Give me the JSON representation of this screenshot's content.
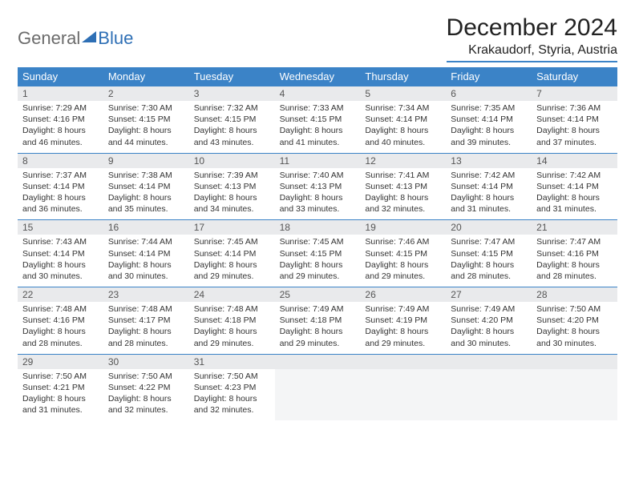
{
  "logo": {
    "text1": "General",
    "text2": "Blue"
  },
  "title": "December 2024",
  "location": "Krakaudorf, Styria, Austria",
  "colors": {
    "header_bg": "#3b83c7",
    "header_text": "#ffffff",
    "daynum_bg": "#e9eaec",
    "border": "#3b83c7",
    "logo_gray": "#6b6b6b",
    "logo_blue": "#2e6fb5"
  },
  "day_names": [
    "Sunday",
    "Monday",
    "Tuesday",
    "Wednesday",
    "Thursday",
    "Friday",
    "Saturday"
  ],
  "labels": {
    "sunrise": "Sunrise:",
    "sunset": "Sunset:",
    "daylight": "Daylight:"
  },
  "days": [
    {
      "n": "1",
      "sunrise": "7:29 AM",
      "sunset": "4:16 PM",
      "daylight": "8 hours and 46 minutes."
    },
    {
      "n": "2",
      "sunrise": "7:30 AM",
      "sunset": "4:15 PM",
      "daylight": "8 hours and 44 minutes."
    },
    {
      "n": "3",
      "sunrise": "7:32 AM",
      "sunset": "4:15 PM",
      "daylight": "8 hours and 43 minutes."
    },
    {
      "n": "4",
      "sunrise": "7:33 AM",
      "sunset": "4:15 PM",
      "daylight": "8 hours and 41 minutes."
    },
    {
      "n": "5",
      "sunrise": "7:34 AM",
      "sunset": "4:14 PM",
      "daylight": "8 hours and 40 minutes."
    },
    {
      "n": "6",
      "sunrise": "7:35 AM",
      "sunset": "4:14 PM",
      "daylight": "8 hours and 39 minutes."
    },
    {
      "n": "7",
      "sunrise": "7:36 AM",
      "sunset": "4:14 PM",
      "daylight": "8 hours and 37 minutes."
    },
    {
      "n": "8",
      "sunrise": "7:37 AM",
      "sunset": "4:14 PM",
      "daylight": "8 hours and 36 minutes."
    },
    {
      "n": "9",
      "sunrise": "7:38 AM",
      "sunset": "4:14 PM",
      "daylight": "8 hours and 35 minutes."
    },
    {
      "n": "10",
      "sunrise": "7:39 AM",
      "sunset": "4:13 PM",
      "daylight": "8 hours and 34 minutes."
    },
    {
      "n": "11",
      "sunrise": "7:40 AM",
      "sunset": "4:13 PM",
      "daylight": "8 hours and 33 minutes."
    },
    {
      "n": "12",
      "sunrise": "7:41 AM",
      "sunset": "4:13 PM",
      "daylight": "8 hours and 32 minutes."
    },
    {
      "n": "13",
      "sunrise": "7:42 AM",
      "sunset": "4:14 PM",
      "daylight": "8 hours and 31 minutes."
    },
    {
      "n": "14",
      "sunrise": "7:42 AM",
      "sunset": "4:14 PM",
      "daylight": "8 hours and 31 minutes."
    },
    {
      "n": "15",
      "sunrise": "7:43 AM",
      "sunset": "4:14 PM",
      "daylight": "8 hours and 30 minutes."
    },
    {
      "n": "16",
      "sunrise": "7:44 AM",
      "sunset": "4:14 PM",
      "daylight": "8 hours and 30 minutes."
    },
    {
      "n": "17",
      "sunrise": "7:45 AM",
      "sunset": "4:14 PM",
      "daylight": "8 hours and 29 minutes."
    },
    {
      "n": "18",
      "sunrise": "7:45 AM",
      "sunset": "4:15 PM",
      "daylight": "8 hours and 29 minutes."
    },
    {
      "n": "19",
      "sunrise": "7:46 AM",
      "sunset": "4:15 PM",
      "daylight": "8 hours and 29 minutes."
    },
    {
      "n": "20",
      "sunrise": "7:47 AM",
      "sunset": "4:15 PM",
      "daylight": "8 hours and 28 minutes."
    },
    {
      "n": "21",
      "sunrise": "7:47 AM",
      "sunset": "4:16 PM",
      "daylight": "8 hours and 28 minutes."
    },
    {
      "n": "22",
      "sunrise": "7:48 AM",
      "sunset": "4:16 PM",
      "daylight": "8 hours and 28 minutes."
    },
    {
      "n": "23",
      "sunrise": "7:48 AM",
      "sunset": "4:17 PM",
      "daylight": "8 hours and 28 minutes."
    },
    {
      "n": "24",
      "sunrise": "7:48 AM",
      "sunset": "4:18 PM",
      "daylight": "8 hours and 29 minutes."
    },
    {
      "n": "25",
      "sunrise": "7:49 AM",
      "sunset": "4:18 PM",
      "daylight": "8 hours and 29 minutes."
    },
    {
      "n": "26",
      "sunrise": "7:49 AM",
      "sunset": "4:19 PM",
      "daylight": "8 hours and 29 minutes."
    },
    {
      "n": "27",
      "sunrise": "7:49 AM",
      "sunset": "4:20 PM",
      "daylight": "8 hours and 30 minutes."
    },
    {
      "n": "28",
      "sunrise": "7:50 AM",
      "sunset": "4:20 PM",
      "daylight": "8 hours and 30 minutes."
    },
    {
      "n": "29",
      "sunrise": "7:50 AM",
      "sunset": "4:21 PM",
      "daylight": "8 hours and 31 minutes."
    },
    {
      "n": "30",
      "sunrise": "7:50 AM",
      "sunset": "4:22 PM",
      "daylight": "8 hours and 32 minutes."
    },
    {
      "n": "31",
      "sunrise": "7:50 AM",
      "sunset": "4:23 PM",
      "daylight": "8 hours and 32 minutes."
    }
  ],
  "trailing_empty": 4
}
